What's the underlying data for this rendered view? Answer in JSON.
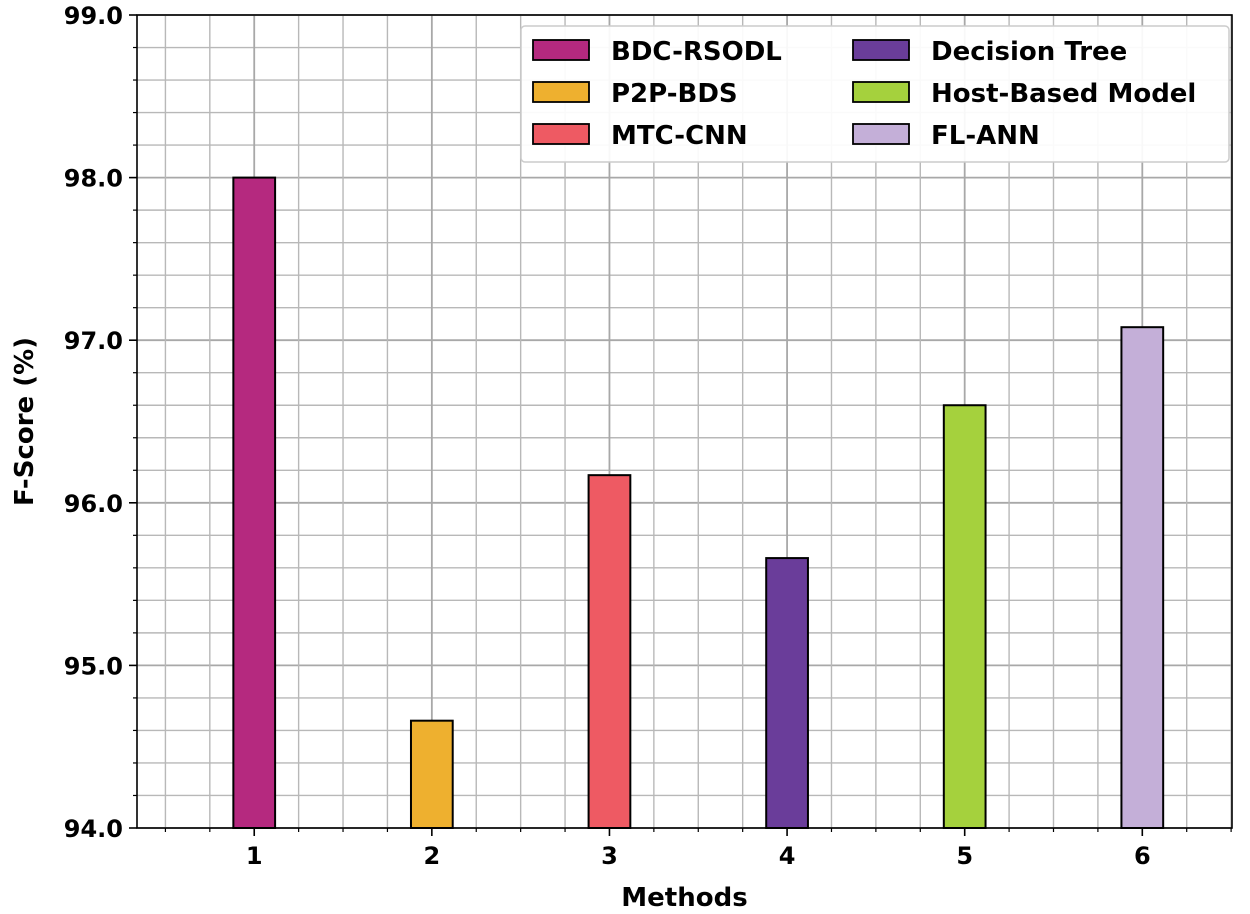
{
  "chart_data": {
    "type": "bar",
    "title": "",
    "xlabel": "Methods",
    "ylabel": "F-Score (%)",
    "ylim": [
      94.0,
      99.0
    ],
    "yticks": [
      "94.0",
      "95.0",
      "96.0",
      "97.0",
      "98.0",
      "99.0"
    ],
    "categories": [
      "1",
      "2",
      "3",
      "4",
      "5",
      "6"
    ],
    "series": [
      {
        "name": "BDC-RSODL",
        "category": "1",
        "value": 98.0,
        "color": "#b5297f"
      },
      {
        "name": "P2P-BDS",
        "category": "2",
        "value": 94.66,
        "color": "#eeb02f"
      },
      {
        "name": "MTC-CNN",
        "category": "3",
        "value": 96.17,
        "color": "#ee5a63"
      },
      {
        "name": "Decision Tree",
        "category": "4",
        "value": 95.66,
        "color": "#6a3d9a"
      },
      {
        "name": "Host-Based Model",
        "category": "5",
        "value": 96.6,
        "color": "#a5d13d"
      },
      {
        "name": "FL-ANN",
        "category": "6",
        "value": 97.08,
        "color": "#c4afd8"
      }
    ],
    "grid": true,
    "legend_position": "top-right"
  }
}
